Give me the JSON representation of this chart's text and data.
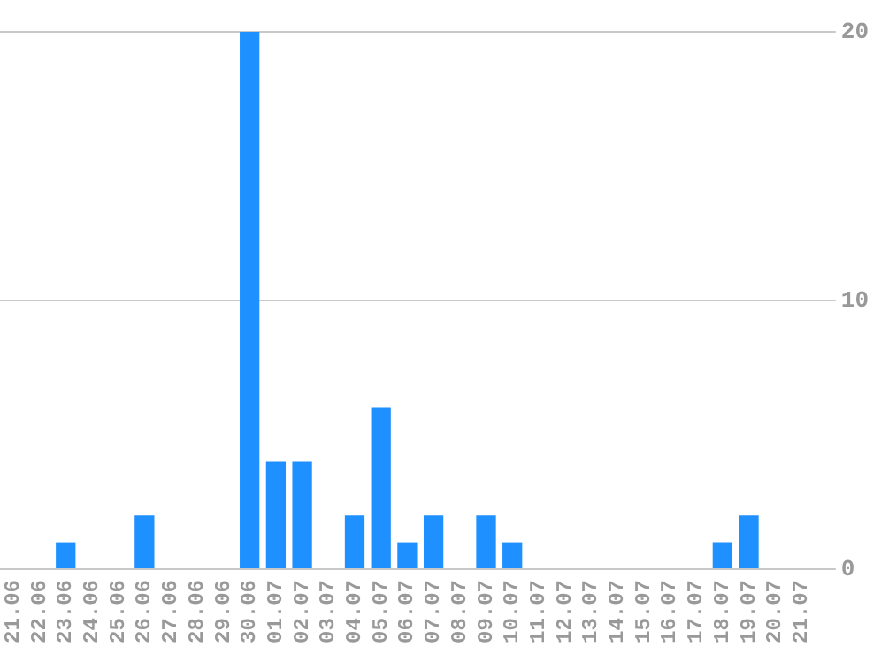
{
  "chart_data": {
    "type": "bar",
    "categories": [
      "21.06",
      "22.06",
      "23.06",
      "24.06",
      "25.06",
      "26.06",
      "27.06",
      "28.06",
      "29.06",
      "30.06",
      "01.07",
      "02.07",
      "03.07",
      "04.07",
      "05.07",
      "06.07",
      "07.07",
      "08.07",
      "09.07",
      "10.07",
      "11.07",
      "12.07",
      "13.07",
      "14.07",
      "15.07",
      "16.07",
      "17.07",
      "18.07",
      "19.07",
      "20.07",
      "21.07"
    ],
    "values": [
      0,
      0,
      1,
      0,
      0,
      2,
      0,
      0,
      0,
      20,
      4,
      4,
      0,
      2,
      6,
      1,
      2,
      0,
      2,
      1,
      0,
      0,
      0,
      0,
      0,
      0,
      0,
      1,
      2,
      0,
      0
    ],
    "color": "#1e90ff",
    "ylim": [
      0,
      20
    ],
    "yticks": [
      0,
      10,
      20
    ],
    "grid": "y"
  }
}
